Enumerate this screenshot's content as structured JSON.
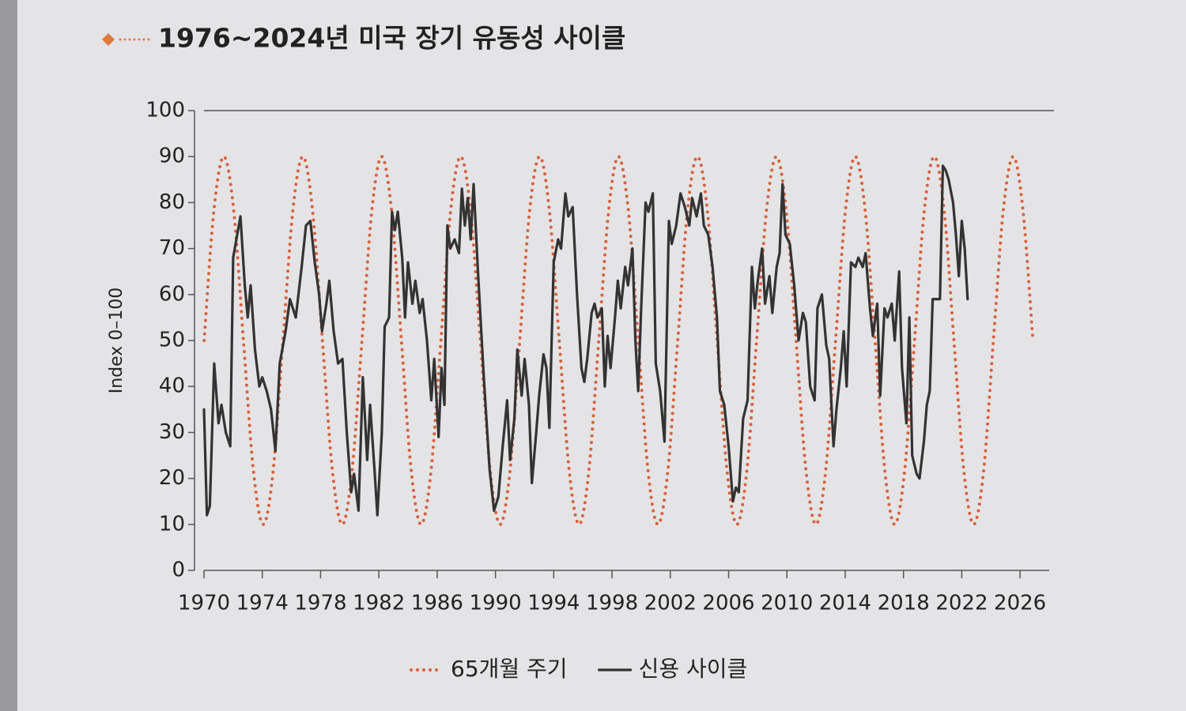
{
  "chart_data": {
    "type": "line",
    "title": "1976~2024년 미국 장기 유동성 사이클",
    "y_label": "Index 0–100",
    "xlim": [
      1970,
      2028
    ],
    "xticks": [
      1970,
      1974,
      1978,
      1982,
      1986,
      1990,
      1994,
      1998,
      2002,
      2006,
      2010,
      2014,
      2018,
      2022,
      2026
    ],
    "ylim": [
      0,
      100
    ],
    "yticks": [
      0,
      10,
      20,
      30,
      40,
      50,
      60,
      70,
      80,
      90,
      100
    ],
    "grid": false,
    "legend": "bottom",
    "series": [
      {
        "name": "65개월 주기",
        "color": "#d9603a",
        "style": "dotted",
        "x": [
          1970.01,
          1970.68,
          1971.36,
          1972.04,
          1972.71,
          1973.39,
          1974.07,
          1974.75,
          1975.42,
          1976.1,
          1976.78,
          1977.45,
          1978.13,
          1978.81,
          1979.49,
          1980.16,
          1980.84,
          1981.52,
          1982.19,
          1982.87,
          1983.55,
          1984.22,
          1984.9,
          1985.58,
          1986.26,
          1986.93,
          1987.61,
          1988.29,
          1988.96,
          1989.64,
          1990.32,
          1991.0,
          1991.67,
          1992.35,
          1993.03,
          1993.7,
          1994.38,
          1995.06,
          1995.74,
          1996.41,
          1997.09,
          1997.77,
          1998.44,
          1999.12,
          1999.8,
          2000.47,
          2001.15,
          2001.83,
          2002.51,
          2003.18,
          2003.86,
          2004.54,
          2005.21,
          2005.89,
          2006.57,
          2007.25,
          2007.92,
          2008.6,
          2009.28,
          2009.95,
          2010.63,
          2011.31,
          2011.99,
          2012.66,
          2013.34,
          2014.02,
          2014.69,
          2015.37,
          2016.05,
          2016.72,
          2017.4,
          2018.08,
          2018.76,
          2019.43,
          2020.11,
          2020.79,
          2021.46,
          2022.14,
          2022.82,
          2023.5,
          2024.17,
          2024.85,
          2025.53,
          2026.2,
          2026.88
        ],
        "values": [
          50,
          78.3,
          90,
          78.3,
          50,
          21.7,
          10,
          21.7,
          50,
          78.3,
          90,
          78.3,
          50,
          21.7,
          10,
          21.7,
          50,
          78.3,
          90,
          78.3,
          50,
          21.7,
          10,
          21.7,
          50,
          78.3,
          90,
          78.3,
          50,
          21.7,
          10,
          21.7,
          50,
          78.3,
          90,
          78.3,
          50,
          21.7,
          10,
          21.7,
          50,
          78.3,
          90,
          78.3,
          50,
          21.7,
          10,
          21.7,
          50,
          78.3,
          90,
          78.3,
          50,
          21.7,
          10,
          21.7,
          50,
          78.3,
          90,
          78.3,
          50,
          21.7,
          10,
          21.7,
          50,
          78.3,
          90,
          78.3,
          50,
          21.7,
          10,
          21.7,
          50,
          78.3,
          90,
          78.3,
          50,
          21.7,
          10,
          21.7,
          50,
          78.3,
          90,
          78.3,
          50
        ]
      },
      {
        "name": "신용 사이클",
        "color": "#333333",
        "style": "solid",
        "x": [
          1970.0,
          1970.2,
          1970.4,
          1970.7,
          1971.0,
          1971.2,
          1971.5,
          1971.8,
          1972.0,
          1972.5,
          1972.8,
          1973.0,
          1973.2,
          1973.5,
          1973.8,
          1974.0,
          1974.3,
          1974.6,
          1974.9,
          1975.2,
          1975.6,
          1975.9,
          1976.3,
          1976.7,
          1977.0,
          1977.3,
          1977.6,
          1977.9,
          1978.1,
          1978.4,
          1978.6,
          1978.9,
          1979.2,
          1979.5,
          1979.8,
          1980.1,
          1980.3,
          1980.6,
          1980.9,
          1981.2,
          1981.4,
          1981.7,
          1981.9,
          1982.2,
          1982.4,
          1982.7,
          1982.9,
          1983.1,
          1983.3,
          1983.6,
          1983.8,
          1984.0,
          1984.3,
          1984.5,
          1984.8,
          1985.0,
          1985.3,
          1985.6,
          1985.8,
          1986.1,
          1986.3,
          1986.5,
          1986.7,
          1986.9,
          1987.2,
          1987.5,
          1987.7,
          1987.9,
          1988.1,
          1988.3,
          1988.5,
          1988.8,
          1989.2,
          1989.6,
          1989.9,
          1990.2,
          1990.5,
          1990.8,
          1991.0,
          1991.3,
          1991.5,
          1991.8,
          1992.0,
          1992.3,
          1992.5,
          1992.8,
          1993.0,
          1993.3,
          1993.5,
          1993.7,
          1994.0,
          1994.3,
          1994.5,
          1994.8,
          1995.0,
          1995.3,
          1995.6,
          1995.9,
          1996.1,
          1996.3,
          1996.6,
          1996.8,
          1997.0,
          1997.3,
          1997.5,
          1997.7,
          1997.9,
          1998.2,
          1998.4,
          1998.6,
          1998.9,
          1999.1,
          1999.4,
          1999.6,
          1999.8,
          2000.0,
          2000.3,
          2000.5,
          2000.8,
          2001.0,
          2001.3,
          2001.6,
          2001.9,
          2002.1,
          2002.4,
          2002.7,
          2003.0,
          2003.3,
          2003.5,
          2003.8,
          2004.1,
          2004.3,
          2004.6,
          2004.9,
          2005.2,
          2005.4,
          2005.7,
          2006.0,
          2006.3,
          2006.5,
          2006.7,
          2007.0,
          2007.3,
          2007.6,
          2007.8,
          2008.0,
          2008.3,
          2008.5,
          2008.8,
          2009.0,
          2009.3,
          2009.5,
          2009.7,
          2009.9,
          2010.2,
          2010.5,
          2010.8,
          2011.1,
          2011.3,
          2011.6,
          2011.9,
          2012.1,
          2012.4,
          2012.7,
          2012.9,
          2013.2,
          2013.4,
          2013.7,
          2013.9,
          2014.1,
          2014.4,
          2014.7,
          2014.9,
          2015.2,
          2015.4,
          2015.7,
          2015.9,
          2016.2,
          2016.4,
          2016.7,
          2016.9,
          2017.2,
          2017.4,
          2017.7,
          2017.9,
          2018.2,
          2018.4,
          2018.6,
          2018.9,
          2019.1,
          2019.4,
          2019.6,
          2019.8,
          2020.0,
          2020.2,
          2020.5,
          2020.7,
          2020.9,
          2021.1,
          2021.4,
          2021.6,
          2021.8,
          2022.0,
          2022.2,
          2022.4
        ],
        "values": [
          35,
          12,
          14,
          45,
          32,
          36,
          30,
          27,
          68,
          77,
          62,
          55,
          62,
          48,
          40,
          42,
          39,
          35,
          26,
          45,
          52,
          59,
          55,
          66,
          75,
          76,
          67,
          60,
          52,
          58,
          63,
          52,
          45,
          46,
          30,
          17,
          21,
          13,
          42,
          24,
          36,
          22,
          12,
          30,
          53,
          55,
          78,
          74,
          78,
          68,
          55,
          67,
          58,
          63,
          56,
          59,
          50,
          37,
          46,
          29,
          44,
          36,
          75,
          70,
          72,
          69,
          83,
          75,
          81,
          72,
          84,
          65,
          42,
          22,
          13,
          16,
          27,
          37,
          24,
          33,
          48,
          38,
          46,
          36,
          19,
          30,
          38,
          47,
          44,
          31,
          67,
          72,
          70,
          82,
          77,
          79,
          60,
          44,
          41,
          46,
          56,
          58,
          55,
          57,
          40,
          51,
          44,
          55,
          63,
          57,
          66,
          62,
          70,
          50,
          39,
          57,
          80,
          78,
          82,
          45,
          39,
          28,
          76,
          71,
          75,
          82,
          79,
          75,
          81,
          77,
          82,
          75,
          73,
          66,
          55,
          39,
          36,
          27,
          15,
          18,
          17,
          33,
          37,
          66,
          57,
          63,
          70,
          58,
          64,
          56,
          66,
          69,
          84,
          73,
          71,
          62,
          50,
          56,
          54,
          40,
          37,
          57,
          60,
          49,
          46,
          27,
          35,
          44,
          52,
          40,
          67,
          66,
          68,
          66,
          69,
          57,
          51,
          58,
          38,
          57,
          55,
          58,
          50,
          65,
          44,
          32,
          55,
          25,
          21,
          20,
          28,
          36,
          39,
          59,
          59,
          59,
          88,
          87,
          85,
          80,
          73,
          64,
          76,
          70,
          59
        ]
      }
    ]
  }
}
